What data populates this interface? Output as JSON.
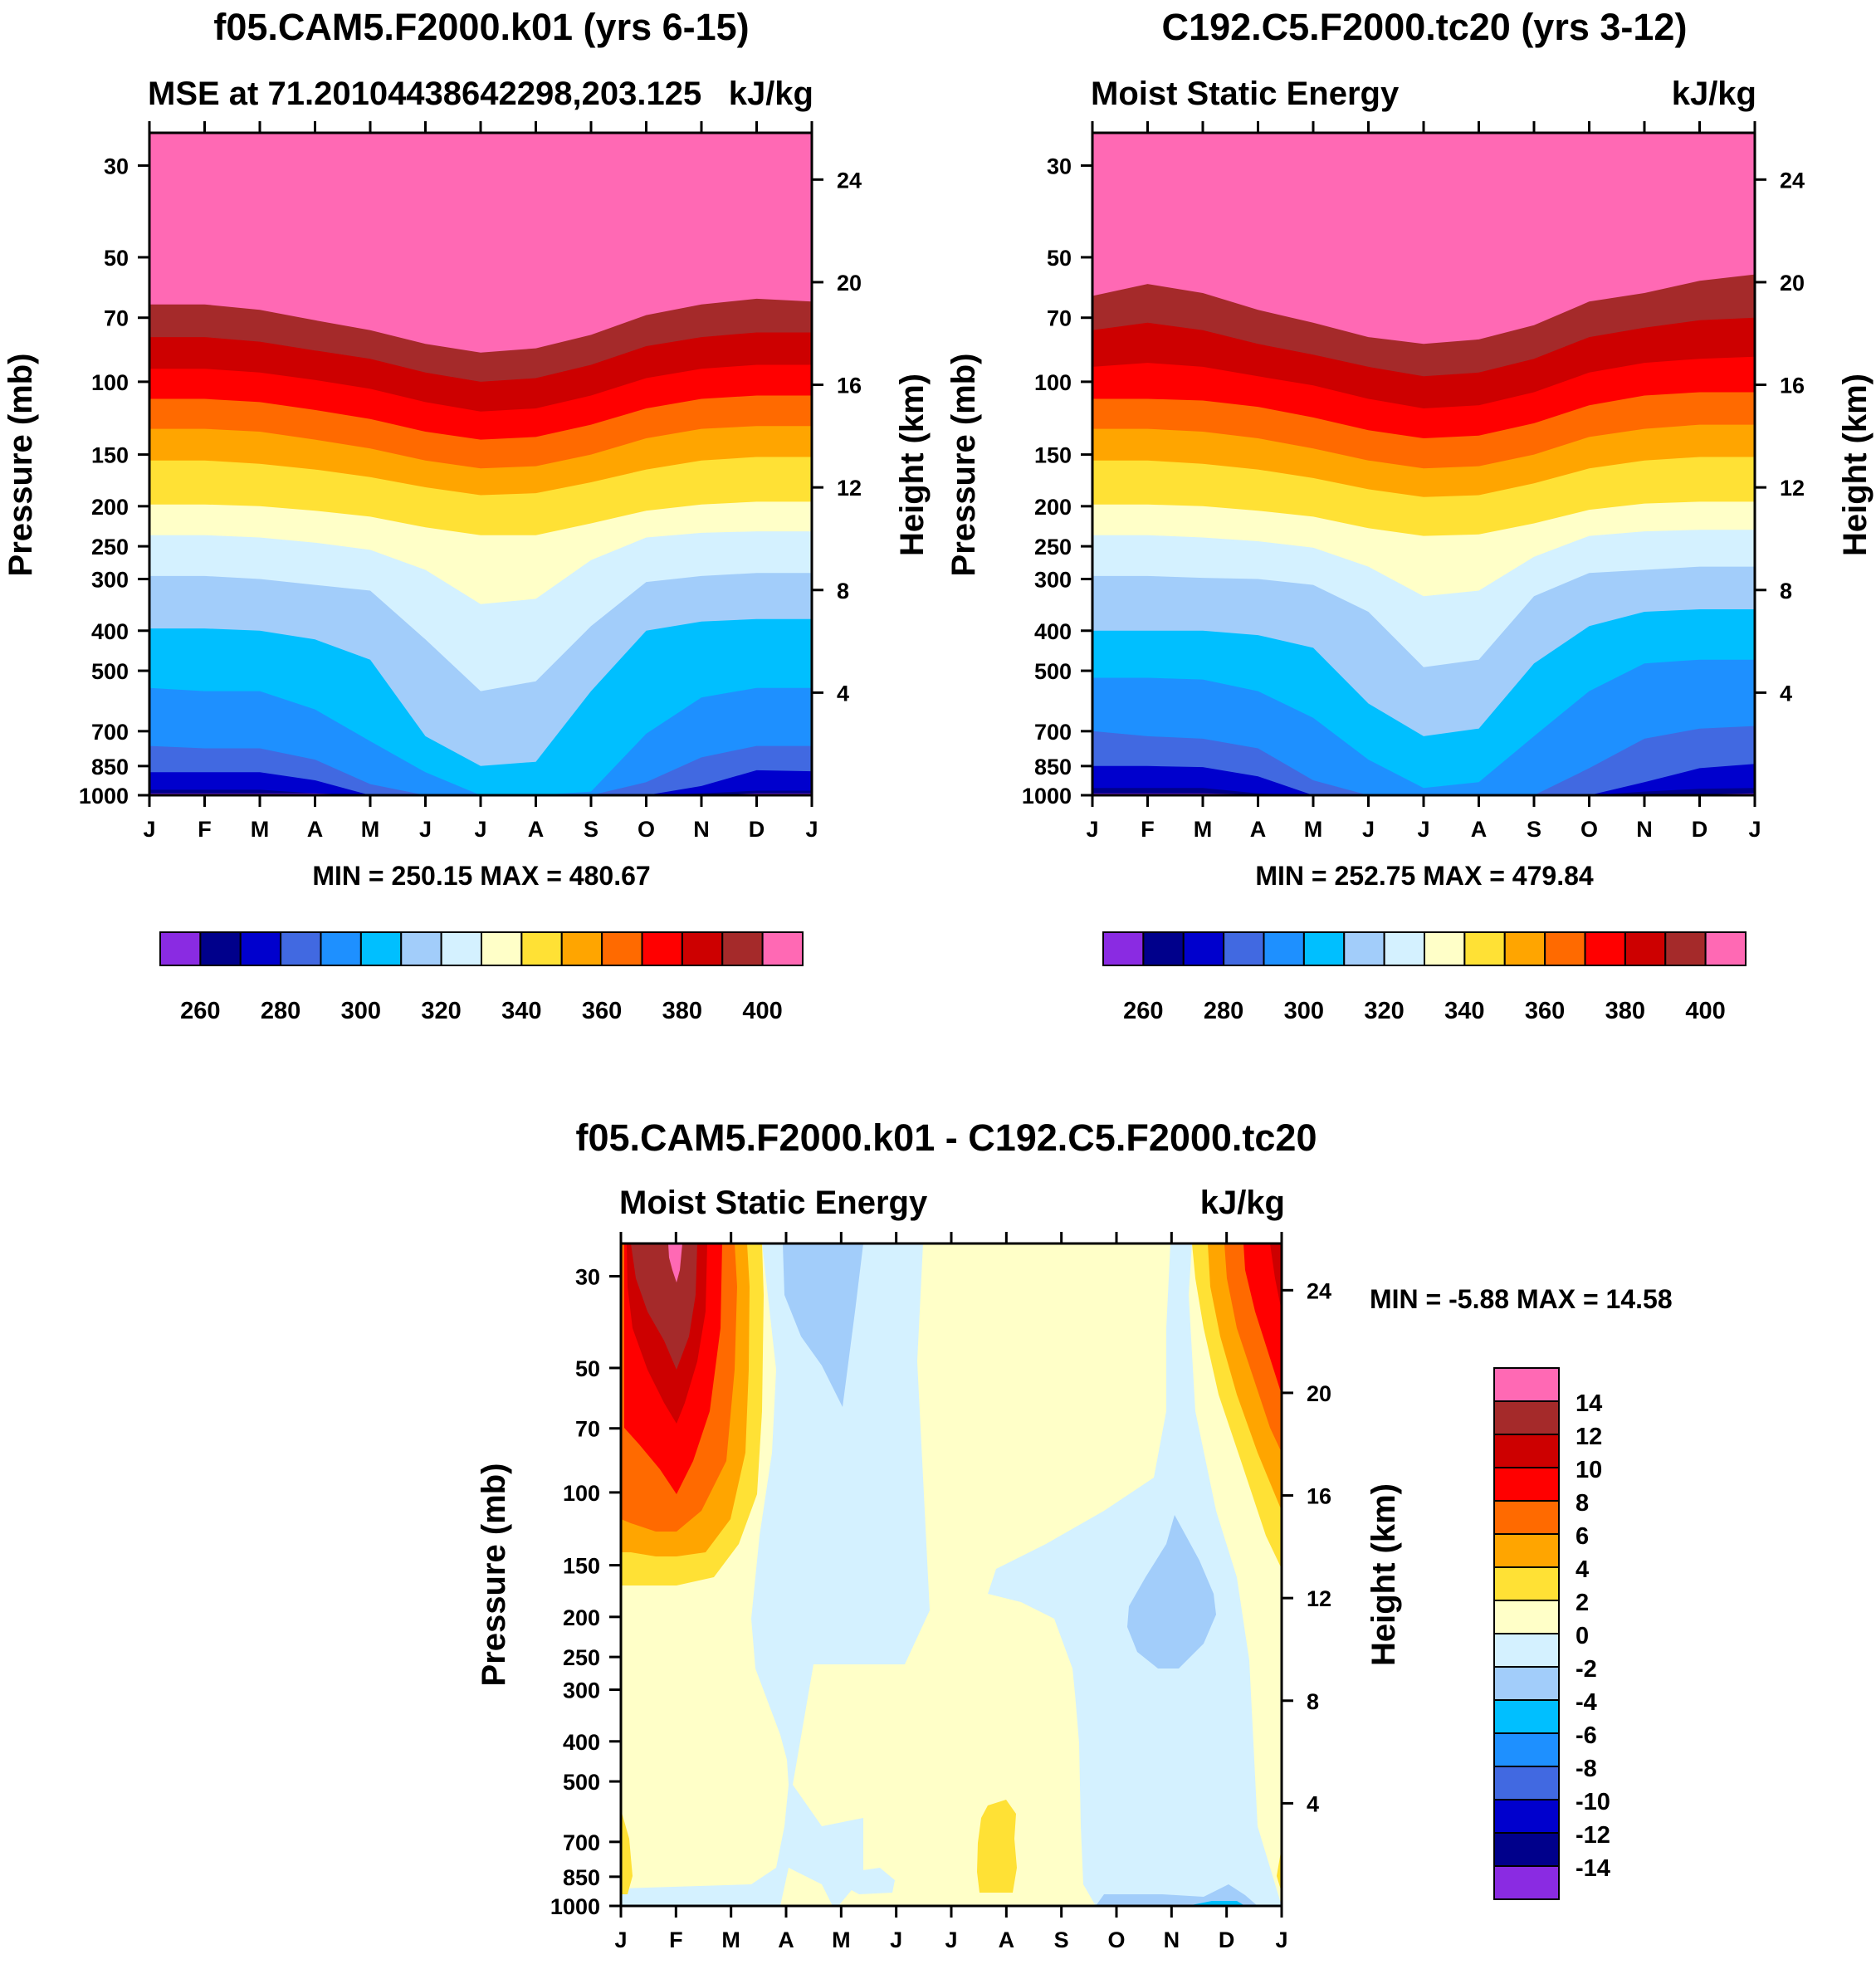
{
  "colors": {
    "palette": [
      "#8A2BE2",
      "#00008B",
      "#0000CD",
      "#4169E1",
      "#1E90FF",
      "#00BFFF",
      "#A2CDFA",
      "#D4F1FF",
      "#FFFFC8",
      "#FFE135",
      "#FFA500",
      "#FF6A00",
      "#FF0000",
      "#CD0000",
      "#A52A2A",
      "#FF69B4"
    ]
  },
  "chart_data": [
    {
      "type": "contour",
      "title": "f05.CAM5.F2000.k01 (yrs 6-15)",
      "left_label": "MSE at 71.20104438642298,203.125",
      "right_label": "kJ/kg",
      "ylabel": "Pressure (mb)",
      "y2label": "Height (km)",
      "minmax": "MIN = 250.15 MAX = 480.67",
      "x_ticks": [
        "J",
        "F",
        "M",
        "A",
        "M",
        "J",
        "J",
        "A",
        "S",
        "O",
        "N",
        "D",
        "J"
      ],
      "y_ticks": [
        "30",
        "50",
        "70",
        "100",
        "150",
        "200",
        "250",
        "300",
        "400",
        "500",
        "700",
        "850",
        "1000"
      ],
      "y_tick_values": [
        30,
        50,
        70,
        100,
        150,
        200,
        250,
        300,
        400,
        500,
        700,
        850,
        1000
      ],
      "y2_ticks": [
        "24",
        "20",
        "16",
        "12",
        "8",
        "4"
      ],
      "y2_tick_values": [
        24,
        20,
        16,
        12,
        8,
        4
      ],
      "ylim": [
        1000,
        25
      ],
      "colorbar_labels": [
        "260",
        "280",
        "300",
        "320",
        "340",
        "360",
        "380",
        "400"
      ],
      "levels": [
        250,
        260,
        270,
        280,
        290,
        300,
        310,
        320,
        330,
        340,
        350,
        360,
        370,
        380,
        390,
        400
      ],
      "boundaries_mb": [
        [
          990,
          990,
          990,
          990,
          1000,
          1000,
          1000,
          1000,
          1000,
          1000,
          1000,
          990,
          990
        ],
        [
          970,
          970,
          970,
          990,
          1000,
          1000,
          1000,
          1000,
          1000,
          1000,
          990,
          975,
          975
        ],
        [
          880,
          880,
          880,
          920,
          1000,
          1000,
          1000,
          1000,
          1000,
          1000,
          950,
          870,
          875
        ],
        [
          760,
          770,
          770,
          820,
          940,
          1000,
          1000,
          1000,
          1000,
          930,
          810,
          760,
          760
        ],
        [
          550,
          560,
          560,
          620,
          740,
          880,
          1000,
          1000,
          980,
          710,
          580,
          550,
          550
        ],
        [
          395,
          395,
          400,
          420,
          470,
          720,
          850,
          830,
          560,
          400,
          380,
          375,
          375
        ],
        [
          295,
          295,
          300,
          310,
          320,
          420,
          560,
          530,
          390,
          305,
          295,
          290,
          290
        ],
        [
          235,
          235,
          238,
          245,
          255,
          285,
          345,
          335,
          270,
          238,
          232,
          230,
          230
        ],
        [
          198,
          198,
          200,
          205,
          212,
          225,
          235,
          235,
          220,
          205,
          198,
          195,
          195
        ],
        [
          155,
          155,
          158,
          163,
          170,
          180,
          188,
          186,
          175,
          163,
          155,
          152,
          152
        ],
        [
          130,
          130,
          132,
          138,
          145,
          155,
          162,
          160,
          150,
          137,
          130,
          128,
          128
        ],
        [
          110,
          110,
          112,
          117,
          123,
          132,
          138,
          136,
          127,
          116,
          110,
          108,
          108
        ],
        [
          93,
          93,
          95,
          99,
          104,
          112,
          118,
          116,
          108,
          98,
          93,
          91,
          91
        ],
        [
          78,
          78,
          80,
          84,
          88,
          95,
          100,
          98,
          91,
          82,
          78,
          76,
          76
        ],
        [
          65,
          65,
          67,
          71,
          75,
          81,
          85,
          83,
          77,
          69,
          65,
          63,
          64
        ]
      ]
    },
    {
      "type": "contour",
      "title": "C192.C5.F2000.tc20 (yrs 3-12)",
      "left_label": "Moist Static Energy",
      "right_label": "kJ/kg",
      "ylabel": "Pressure (mb)",
      "y2label": "Height (km)",
      "minmax": "MIN = 252.75 MAX = 479.84",
      "x_ticks": [
        "J",
        "F",
        "M",
        "A",
        "M",
        "J",
        "J",
        "A",
        "S",
        "O",
        "N",
        "D",
        "J"
      ],
      "y_ticks": [
        "30",
        "50",
        "70",
        "100",
        "150",
        "200",
        "250",
        "300",
        "400",
        "500",
        "700",
        "850",
        "1000"
      ],
      "y_tick_values": [
        30,
        50,
        70,
        100,
        150,
        200,
        250,
        300,
        400,
        500,
        700,
        850,
        1000
      ],
      "y2_ticks": [
        "24",
        "20",
        "16",
        "12",
        "8",
        "4"
      ],
      "y2_tick_values": [
        24,
        20,
        16,
        12,
        8,
        4
      ],
      "ylim": [
        1000,
        25
      ],
      "colorbar_labels": [
        "260",
        "280",
        "300",
        "320",
        "340",
        "360",
        "380",
        "400"
      ],
      "levels": [
        250,
        260,
        270,
        280,
        290,
        300,
        310,
        320,
        330,
        340,
        350,
        360,
        370,
        380,
        390,
        400
      ],
      "boundaries_mb": [
        [
          990,
          990,
          990,
          995,
          1000,
          1000,
          1000,
          1000,
          1000,
          1000,
          1000,
          995,
          990
        ],
        [
          960,
          960,
          960,
          990,
          1000,
          1000,
          1000,
          1000,
          1000,
          1000,
          980,
          965,
          960
        ],
        [
          850,
          850,
          855,
          900,
          1000,
          1000,
          1000,
          1000,
          1000,
          1000,
          930,
          860,
          840
        ],
        [
          700,
          720,
          730,
          770,
          920,
          1000,
          1000,
          1000,
          1000,
          860,
          730,
          690,
          680
        ],
        [
          520,
          520,
          525,
          560,
          650,
          820,
          960,
          930,
          720,
          560,
          480,
          470,
          470
        ],
        [
          400,
          400,
          400,
          410,
          440,
          600,
          720,
          690,
          480,
          390,
          360,
          355,
          355
        ],
        [
          295,
          295,
          298,
          300,
          310,
          360,
          490,
          470,
          330,
          290,
          285,
          280,
          280
        ],
        [
          235,
          235,
          238,
          243,
          252,
          280,
          330,
          320,
          265,
          236,
          230,
          228,
          228
        ],
        [
          198,
          198,
          200,
          205,
          212,
          226,
          236,
          234,
          220,
          204,
          197,
          195,
          195
        ],
        [
          155,
          155,
          158,
          163,
          171,
          182,
          190,
          188,
          176,
          162,
          155,
          152,
          152
        ],
        [
          130,
          130,
          132,
          137,
          145,
          155,
          162,
          160,
          150,
          136,
          130,
          127,
          127
        ],
        [
          110,
          110,
          111,
          115,
          122,
          131,
          137,
          135,
          126,
          114,
          108,
          106,
          106
        ],
        [
          92,
          90,
          92,
          97,
          102,
          110,
          116,
          114,
          106,
          95,
          90,
          88,
          87
        ],
        [
          75,
          72,
          75,
          81,
          86,
          92,
          97,
          95,
          88,
          78,
          74,
          71,
          70
        ],
        [
          62,
          58,
          61,
          67,
          72,
          78,
          81,
          79,
          73,
          64,
          61,
          57,
          55
        ]
      ]
    },
    {
      "type": "contour",
      "title": "f05.CAM5.F2000.k01 - C192.C5.F2000.tc20",
      "left_label": "Moist Static Energy",
      "right_label": "kJ/kg",
      "ylabel": "Pressure (mb)",
      "y2label": "Height (km)",
      "minmax": "MIN =  -5.88 MAX =  14.58",
      "x_ticks": [
        "J",
        "F",
        "M",
        "A",
        "M",
        "J",
        "J",
        "A",
        "S",
        "O",
        "N",
        "D",
        "J"
      ],
      "y_ticks": [
        "30",
        "50",
        "70",
        "100",
        "150",
        "200",
        "250",
        "300",
        "400",
        "500",
        "700",
        "850",
        "1000"
      ],
      "y_tick_values": [
        30,
        50,
        70,
        100,
        150,
        200,
        250,
        300,
        400,
        500,
        700,
        850,
        1000
      ],
      "y2_ticks": [
        "24",
        "20",
        "16",
        "12",
        "8",
        "4"
      ],
      "y2_tick_values": [
        24,
        20,
        16,
        12,
        8,
        4
      ],
      "ylim": [
        1000,
        25
      ],
      "colorbar_labels": [
        "14",
        "12",
        "10",
        "8",
        "6",
        "4",
        "2",
        "0",
        "-2",
        "-4",
        "-6",
        "-8",
        "-10",
        "-12",
        "-14"
      ],
      "levels": [
        -16,
        -14,
        -12,
        -10,
        -8,
        -6,
        -4,
        -2,
        0,
        2,
        4,
        6,
        8,
        10,
        12,
        14
      ]
    }
  ]
}
